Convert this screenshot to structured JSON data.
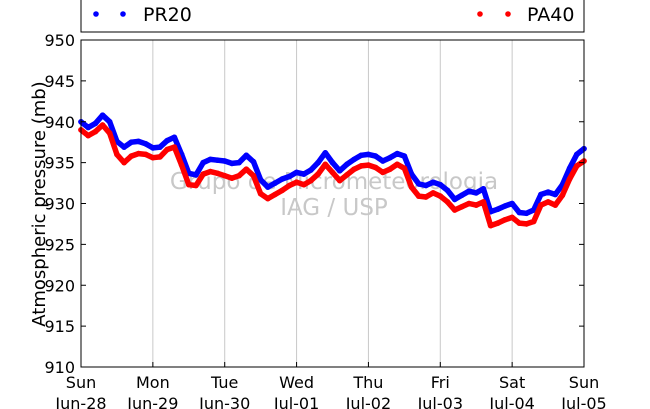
{
  "chart_data": {
    "type": "line",
    "xlabel": "",
    "ylabel": "Atmospheric pressure (mb)",
    "ylim": [
      910,
      950
    ],
    "y_ticks": [
      "910",
      "915",
      "920",
      "925",
      "930",
      "935",
      "940",
      "945",
      "950"
    ],
    "y_tick_values": [
      910,
      915,
      920,
      925,
      930,
      935,
      940,
      945,
      950
    ],
    "xlim": [
      0,
      7
    ],
    "x_ticks": [
      {
        "day": "Sun",
        "date": "Jun-28",
        "x": 0
      },
      {
        "day": "Mon",
        "date": "Jun-29",
        "x": 1
      },
      {
        "day": "Tue",
        "date": "Jun-30",
        "x": 2
      },
      {
        "day": "Wed",
        "date": "Jul-01",
        "x": 3
      },
      {
        "day": "Thu",
        "date": "Jul-02",
        "x": 4
      },
      {
        "day": "Fri",
        "date": "Jul-03",
        "x": 5
      },
      {
        "day": "Sat",
        "date": "Jul-04",
        "x": 6
      },
      {
        "day": "Sun",
        "date": "Jul-05",
        "x": 7
      }
    ],
    "grid": "vertical",
    "legend_position": "top",
    "watermark": [
      "Grupo de Micrometeorologia",
      "IAG / USP"
    ],
    "series": [
      {
        "name": "PR20",
        "color": "#0000ff",
        "points": [
          [
            0.0,
            940.0
          ],
          [
            0.1,
            939.3
          ],
          [
            0.2,
            939.8
          ],
          [
            0.3,
            940.8
          ],
          [
            0.4,
            940.0
          ],
          [
            0.5,
            937.6
          ],
          [
            0.6,
            936.9
          ],
          [
            0.7,
            937.5
          ],
          [
            0.8,
            937.6
          ],
          [
            0.9,
            937.3
          ],
          [
            1.0,
            936.8
          ],
          [
            1.1,
            936.9
          ],
          [
            1.2,
            937.7
          ],
          [
            1.3,
            938.1
          ],
          [
            1.4,
            936.0
          ],
          [
            1.5,
            933.7
          ],
          [
            1.6,
            933.5
          ],
          [
            1.7,
            935.0
          ],
          [
            1.8,
            935.4
          ],
          [
            1.9,
            935.3
          ],
          [
            2.0,
            935.2
          ],
          [
            2.1,
            934.9
          ],
          [
            2.2,
            935.0
          ],
          [
            2.3,
            935.9
          ],
          [
            2.4,
            935.1
          ],
          [
            2.5,
            932.9
          ],
          [
            2.6,
            932.0
          ],
          [
            2.7,
            932.5
          ],
          [
            2.8,
            933.0
          ],
          [
            2.9,
            933.3
          ],
          [
            3.0,
            933.8
          ],
          [
            3.1,
            933.6
          ],
          [
            3.2,
            934.1
          ],
          [
            3.3,
            935.0
          ],
          [
            3.4,
            936.2
          ],
          [
            3.5,
            935.0
          ],
          [
            3.6,
            934.0
          ],
          [
            3.7,
            934.8
          ],
          [
            3.8,
            935.4
          ],
          [
            3.9,
            935.9
          ],
          [
            4.0,
            936.0
          ],
          [
            4.1,
            935.8
          ],
          [
            4.2,
            935.2
          ],
          [
            4.3,
            935.6
          ],
          [
            4.4,
            936.1
          ],
          [
            4.5,
            935.8
          ],
          [
            4.6,
            933.6
          ],
          [
            4.7,
            932.4
          ],
          [
            4.8,
            932.2
          ],
          [
            4.9,
            932.6
          ],
          [
            5.0,
            932.3
          ],
          [
            5.1,
            931.6
          ],
          [
            5.2,
            930.5
          ],
          [
            5.3,
            931.0
          ],
          [
            5.4,
            931.5
          ],
          [
            5.5,
            931.3
          ],
          [
            5.6,
            931.8
          ],
          [
            5.7,
            929.0
          ],
          [
            5.8,
            929.3
          ],
          [
            5.9,
            929.7
          ],
          [
            6.0,
            930.0
          ],
          [
            6.1,
            928.9
          ],
          [
            6.2,
            928.8
          ],
          [
            6.3,
            929.2
          ],
          [
            6.4,
            931.1
          ],
          [
            6.5,
            931.4
          ],
          [
            6.6,
            931.1
          ],
          [
            6.7,
            932.3
          ],
          [
            6.8,
            934.3
          ],
          [
            6.9,
            936.0
          ],
          [
            7.0,
            936.7
          ]
        ]
      },
      {
        "name": "PA40",
        "color": "#ff0000",
        "points": [
          [
            0.0,
            939.0
          ],
          [
            0.1,
            938.3
          ],
          [
            0.2,
            938.8
          ],
          [
            0.3,
            939.6
          ],
          [
            0.4,
            938.6
          ],
          [
            0.5,
            936.0
          ],
          [
            0.6,
            935.0
          ],
          [
            0.7,
            935.8
          ],
          [
            0.8,
            936.1
          ],
          [
            0.9,
            936.0
          ],
          [
            1.0,
            935.6
          ],
          [
            1.1,
            935.7
          ],
          [
            1.2,
            936.6
          ],
          [
            1.3,
            936.9
          ],
          [
            1.4,
            934.7
          ],
          [
            1.5,
            932.3
          ],
          [
            1.6,
            932.2
          ],
          [
            1.7,
            933.6
          ],
          [
            1.8,
            933.9
          ],
          [
            1.9,
            933.7
          ],
          [
            2.0,
            933.4
          ],
          [
            2.1,
            933.1
          ],
          [
            2.2,
            933.4
          ],
          [
            2.3,
            934.2
          ],
          [
            2.4,
            933.4
          ],
          [
            2.5,
            931.2
          ],
          [
            2.6,
            930.6
          ],
          [
            2.7,
            931.1
          ],
          [
            2.8,
            931.6
          ],
          [
            2.9,
            932.2
          ],
          [
            3.0,
            932.6
          ],
          [
            3.1,
            932.3
          ],
          [
            3.2,
            932.8
          ],
          [
            3.3,
            933.6
          ],
          [
            3.4,
            934.8
          ],
          [
            3.5,
            933.8
          ],
          [
            3.6,
            932.8
          ],
          [
            3.7,
            933.5
          ],
          [
            3.8,
            934.2
          ],
          [
            3.9,
            934.6
          ],
          [
            4.0,
            934.7
          ],
          [
            4.1,
            934.4
          ],
          [
            4.2,
            933.8
          ],
          [
            4.3,
            934.2
          ],
          [
            4.4,
            934.8
          ],
          [
            4.5,
            934.3
          ],
          [
            4.6,
            932.0
          ],
          [
            4.7,
            930.9
          ],
          [
            4.8,
            930.8
          ],
          [
            4.9,
            931.3
          ],
          [
            5.0,
            930.9
          ],
          [
            5.1,
            930.2
          ],
          [
            5.2,
            929.2
          ],
          [
            5.3,
            929.6
          ],
          [
            5.4,
            930.0
          ],
          [
            5.5,
            929.8
          ],
          [
            5.6,
            930.2
          ],
          [
            5.7,
            927.3
          ],
          [
            5.8,
            927.6
          ],
          [
            5.9,
            928.0
          ],
          [
            6.0,
            928.3
          ],
          [
            6.1,
            927.6
          ],
          [
            6.2,
            927.5
          ],
          [
            6.3,
            927.8
          ],
          [
            6.4,
            929.8
          ],
          [
            6.5,
            930.2
          ],
          [
            6.6,
            929.8
          ],
          [
            6.7,
            931.0
          ],
          [
            6.8,
            933.0
          ],
          [
            6.9,
            934.6
          ],
          [
            7.0,
            935.2
          ]
        ]
      }
    ]
  }
}
